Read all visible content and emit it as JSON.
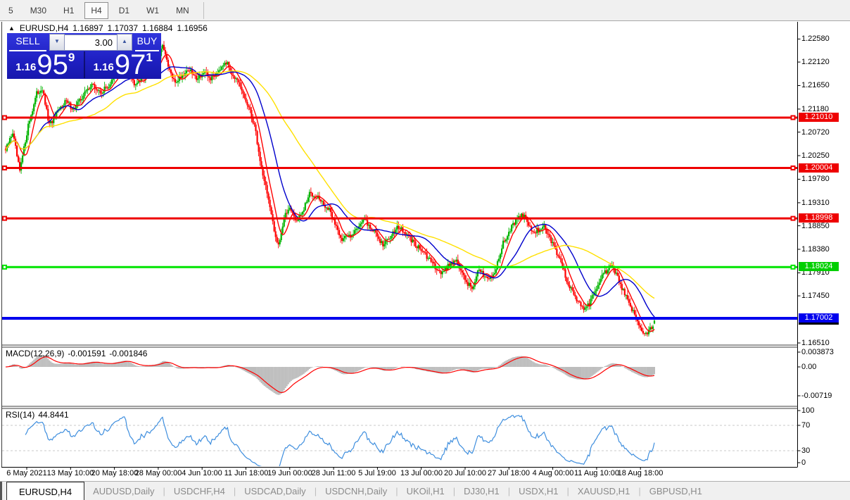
{
  "toolbar": {
    "timeframes": [
      {
        "label": "5",
        "active": false
      },
      {
        "label": "M30",
        "active": false
      },
      {
        "label": "H1",
        "active": false
      },
      {
        "label": "H4",
        "active": true
      },
      {
        "label": "D1",
        "active": false
      },
      {
        "label": "W1",
        "active": false
      },
      {
        "label": "MN",
        "active": false
      }
    ]
  },
  "chart_header": {
    "collapse_icon": "▲",
    "symbol_period": "EURUSD,H4",
    "open": "1.16897",
    "high": "1.17037",
    "low": "1.16884",
    "close": "1.16956"
  },
  "one_click": {
    "sell_label": "SELL",
    "buy_label": "BUY",
    "volume": "3.00",
    "volume_down_icon": "▼",
    "volume_up_icon": "▲",
    "sell_price_prefix": "1.16",
    "sell_price_big": "95",
    "sell_price_sup": "9",
    "buy_price_prefix": "1.16",
    "buy_price_big": "97",
    "buy_price_sup": "1"
  },
  "price_axis": {
    "ticks": [
      "1.22580",
      "1.22120",
      "1.21650",
      "1.21180",
      "1.20720",
      "1.20250",
      "1.19780",
      "1.19310",
      "1.18850",
      "1.18380",
      "1.17910",
      "1.17450",
      "1.16510"
    ],
    "line_labels": [
      {
        "text": "1.21010",
        "color": "#ee0000"
      },
      {
        "text": "1.20004",
        "color": "#ee0000"
      },
      {
        "text": "1.18998",
        "color": "#ee0000"
      },
      {
        "text": "1.18024",
        "color": "#00cf00"
      },
      {
        "text": "1.17002",
        "color": "#0000ee"
      }
    ],
    "bid_label": {
      "text": "1.16956",
      "color": "#000000"
    }
  },
  "macd_panel": {
    "label": "MACD(12,26,9)",
    "main_value": "-0.001591",
    "signal_value": "-0.001846",
    "axis_ticks": [
      "0.003873",
      "0.00",
      "-0.00719"
    ]
  },
  "rsi_panel": {
    "label": "RSI(14)",
    "value": "44.8441",
    "axis_ticks": [
      "100",
      "70",
      "30",
      "0"
    ]
  },
  "time_axis": {
    "labels": [
      "6 May 2021",
      "13 May 10:00",
      "20 May 18:00",
      "28 May 00:00",
      "4 Jun 10:00",
      "11 Jun 18:00",
      "19 Jun 00:00",
      "28 Jun 11:00",
      "5 Jul 19:00",
      "13 Jul 00:00",
      "20 Jul 10:00",
      "27 Jul 18:00",
      "4 Aug 00:00",
      "11 Aug 10:00",
      "18 Aug 18:00"
    ]
  },
  "tabbar": {
    "separator": "|",
    "tabs": [
      {
        "label": "EURUSD,H4",
        "active": true
      },
      {
        "label": "AUDUSD,Daily",
        "active": false
      },
      {
        "label": "USDCHF,H4",
        "active": false
      },
      {
        "label": "USDCAD,Daily",
        "active": false
      },
      {
        "label": "USDCNH,Daily",
        "active": false
      },
      {
        "label": "UKOil,H1",
        "active": false
      },
      {
        "label": "DJ30,H1",
        "active": false
      },
      {
        "label": "USDX,H1",
        "active": false
      },
      {
        "label": "XAUUSD,H1",
        "active": false
      },
      {
        "label": "GBPUSD,H1",
        "active": false
      }
    ]
  },
  "chart_data": {
    "type": "candlestick",
    "symbol": "EURUSD",
    "timeframe": "H4",
    "title": "EURUSD,H4 1.16897 1.17037 1.16884 1.16956",
    "last_candle": {
      "open": 1.16897,
      "high": 1.17037,
      "low": 1.16884,
      "close": 1.16956
    },
    "visible_price_range": [
      1.164,
      1.2262
    ],
    "grid": false,
    "colors": {
      "bull": "#00b300",
      "bear": "#ff0000",
      "background": "#ffffff",
      "foreground": "#000000"
    },
    "horizontal_lines": [
      {
        "price": 1.2101,
        "color": "#ee0000",
        "width": 3,
        "anchors": true
      },
      {
        "price": 1.20004,
        "color": "#ee0000",
        "width": 3,
        "anchors": true
      },
      {
        "price": 1.18998,
        "color": "#ee0000",
        "width": 3,
        "anchors": true
      },
      {
        "price": 1.18024,
        "color": "#00e400",
        "width": 3,
        "anchors": true
      },
      {
        "price": 1.17002,
        "color": "#0000ee",
        "width": 4,
        "anchors": false
      }
    ],
    "bid_price": 1.16956,
    "moving_averages": [
      {
        "period": 8,
        "color": "#ff0000"
      },
      {
        "period": 24,
        "color": "#0000cc"
      },
      {
        "period": 64,
        "color": "#ffe000"
      }
    ],
    "macd": {
      "fast": 12,
      "slow": 26,
      "signal": 9,
      "main_color": "#bcbcbc",
      "signal_color": "#ff0000",
      "axis_max": 0.003873,
      "axis_min": -0.007195,
      "last_main": -0.001591,
      "last_signal": -0.001846
    },
    "rsi": {
      "period": 14,
      "color": "#3e8ede",
      "levels": [
        70,
        30
      ],
      "last_value": 44.8441
    },
    "price_path_anchors": [
      [
        8,
        1.2035
      ],
      [
        18,
        1.2072
      ],
      [
        28,
        1.1992
      ],
      [
        40,
        1.2085
      ],
      [
        52,
        1.2148
      ],
      [
        60,
        1.216
      ],
      [
        70,
        1.2085
      ],
      [
        82,
        1.211
      ],
      [
        92,
        1.2135
      ],
      [
        105,
        1.2118
      ],
      [
        118,
        1.2145
      ],
      [
        130,
        1.2168
      ],
      [
        142,
        1.215
      ],
      [
        155,
        1.2165
      ],
      [
        168,
        1.2195
      ],
      [
        178,
        1.221
      ],
      [
        190,
        1.217
      ],
      [
        202,
        1.218
      ],
      [
        215,
        1.2195
      ],
      [
        225,
        1.2215
      ],
      [
        232,
        1.2248
      ],
      [
        238,
        1.2205
      ],
      [
        248,
        1.217
      ],
      [
        258,
        1.2185
      ],
      [
        268,
        1.2198
      ],
      [
        278,
        1.218
      ],
      [
        290,
        1.219
      ],
      [
        300,
        1.2178
      ],
      [
        310,
        1.2195
      ],
      [
        320,
        1.2215
      ],
      [
        330,
        1.219
      ],
      [
        340,
        1.2165
      ],
      [
        352,
        1.2125
      ],
      [
        362,
        1.2085
      ],
      [
        370,
        1.201
      ],
      [
        380,
        1.195
      ],
      [
        390,
        1.187
      ],
      [
        396,
        1.1848
      ],
      [
        404,
        1.19
      ],
      [
        412,
        1.1925
      ],
      [
        420,
        1.1895
      ],
      [
        430,
        1.191
      ],
      [
        440,
        1.195
      ],
      [
        450,
        1.1945
      ],
      [
        458,
        1.193
      ],
      [
        468,
        1.1915
      ],
      [
        476,
        1.189
      ],
      [
        486,
        1.1858
      ],
      [
        495,
        1.1865
      ],
      [
        505,
        1.1875
      ],
      [
        515,
        1.1898
      ],
      [
        525,
        1.1885
      ],
      [
        535,
        1.1868
      ],
      [
        545,
        1.1845
      ],
      [
        555,
        1.1865
      ],
      [
        565,
        1.1885
      ],
      [
        575,
        1.187
      ],
      [
        585,
        1.1855
      ],
      [
        598,
        1.1838
      ],
      [
        608,
        1.182
      ],
      [
        618,
        1.1805
      ],
      [
        628,
        1.179
      ],
      [
        638,
        1.1808
      ],
      [
        648,
        1.1818
      ],
      [
        656,
        1.179
      ],
      [
        664,
        1.177
      ],
      [
        672,
        1.1762
      ],
      [
        680,
        1.1795
      ],
      [
        690,
        1.1785
      ],
      [
        700,
        1.1782
      ],
      [
        708,
        1.1815
      ],
      [
        716,
        1.1855
      ],
      [
        726,
        1.188
      ],
      [
        736,
        1.1898
      ],
      [
        743,
        1.1907
      ],
      [
        750,
        1.189
      ],
      [
        758,
        1.187
      ],
      [
        766,
        1.1878
      ],
      [
        774,
        1.1882
      ],
      [
        782,
        1.1858
      ],
      [
        790,
        1.1835
      ],
      [
        798,
        1.181
      ],
      [
        806,
        1.1775
      ],
      [
        814,
        1.175
      ],
      [
        822,
        1.1735
      ],
      [
        830,
        1.1718
      ],
      [
        838,
        1.173
      ],
      [
        846,
        1.1758
      ],
      [
        854,
        1.178
      ],
      [
        862,
        1.1795
      ],
      [
        868,
        1.1803
      ],
      [
        876,
        1.179
      ],
      [
        884,
        1.176
      ],
      [
        892,
        1.1735
      ],
      [
        900,
        1.1712
      ],
      [
        908,
        1.169
      ],
      [
        915,
        1.1666
      ],
      [
        921,
        1.1675
      ],
      [
        927,
        1.1685
      ],
      [
        930,
        1.16956
      ]
    ]
  }
}
